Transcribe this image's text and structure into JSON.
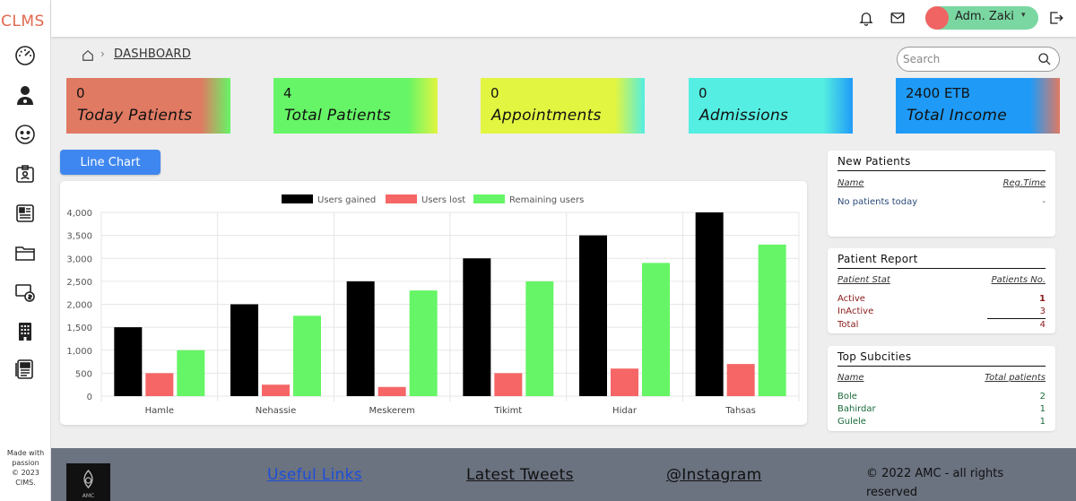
{
  "app": {
    "brand": "CLMS"
  },
  "sidebar": {
    "icons": [
      "speedometer-icon",
      "doctor-icon",
      "patient-face-icon",
      "id-card-icon",
      "news-icon",
      "folder-icon",
      "billing-icon",
      "building-icon",
      "report-icon"
    ],
    "footer": {
      "line1": "Made with",
      "line2": "passion",
      "line3": "© 2023",
      "line4": "CIMS."
    }
  },
  "topbar": {
    "icons": [
      "bell-icon",
      "mail-icon",
      "logout-icon"
    ],
    "user_name": "Adm. Zaki",
    "user_caret": "▾",
    "avatar_color": "#f06464",
    "chip_color": "#7ad7a2"
  },
  "breadcrumb": {
    "separator": "›",
    "current": "DASHBOARD"
  },
  "search": {
    "placeholder": "Search",
    "value": ""
  },
  "stats": [
    {
      "value": "0",
      "label": "Today Patients",
      "color": "#e07a63"
    },
    {
      "value": "4",
      "label": "Total Patients",
      "color": "#66f566"
    },
    {
      "value": "0",
      "label": "Appointments",
      "color": "#e2f541"
    },
    {
      "value": "0",
      "label": "Admissions",
      "color": "#55eee2"
    },
    {
      "value": "2400 ETB",
      "label": "Total Income",
      "color": "#1f9bf7"
    }
  ],
  "line_chart_button": "Line Chart",
  "chart_data": {
    "type": "bar",
    "categories": [
      "Hamle",
      "Nehassie",
      "Meskerem",
      "Tikimt",
      "Hidar",
      "Tahsas"
    ],
    "series": [
      {
        "name": "Users gained",
        "color": "#000000",
        "values": [
          1500,
          2000,
          2500,
          3000,
          3500,
          4000
        ]
      },
      {
        "name": "Users lost",
        "color": "#f66666",
        "values": [
          500,
          250,
          200,
          500,
          600,
          700
        ]
      },
      {
        "name": "Remaining users",
        "color": "#66f566",
        "values": [
          1000,
          1750,
          2300,
          2500,
          2900,
          3300
        ]
      }
    ],
    "ylim": [
      0,
      4000
    ],
    "yticks": [
      "0",
      "500",
      "1,000",
      "1,500",
      "2,000",
      "2,500",
      "3,000",
      "3,500",
      "4,000"
    ],
    "legend": "top-center",
    "grid": true
  },
  "panels": {
    "new_patients": {
      "title": "New Patients",
      "col_name": "Name",
      "col_time": "Reg.Time",
      "empty": "No patients today",
      "empty_time": "-"
    },
    "patient_report": {
      "title": "Patient Report",
      "col_stat": "Patient Stat",
      "col_no": "Patients No.",
      "rows": [
        {
          "label": "Active",
          "value": "1"
        },
        {
          "label": "InActive",
          "value": "3"
        },
        {
          "label": "Total",
          "value": "4"
        }
      ]
    },
    "top_subcities": {
      "title": "Top Subcities",
      "col_name": "Name",
      "col_total": "Total patients",
      "rows": [
        {
          "label": "Bole",
          "value": "2"
        },
        {
          "label": "Bahirdar",
          "value": "1"
        },
        {
          "label": "Gulele",
          "value": "1"
        }
      ]
    }
  },
  "footer": {
    "useful_links": "Useful Links",
    "latest_tweets": "Latest Tweets",
    "instagram": "@Instagram",
    "copyright_line1": "© 2022 AMC - all rights",
    "copyright_line2": "reserved",
    "logo_text": "AMC"
  }
}
